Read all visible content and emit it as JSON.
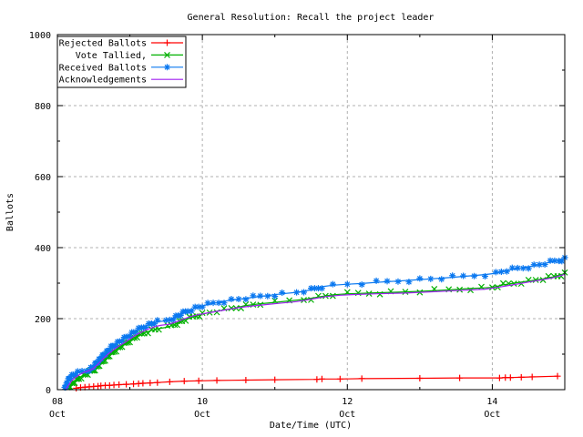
{
  "chart_data": {
    "type": "line",
    "title": "General Resolution: Recall the project leader",
    "xlabel": "Date/Time (UTC)",
    "ylabel": "Ballots",
    "background": "#ffffff",
    "border_color": "#000000",
    "grid_color": "#b0b0b0",
    "grid": "dashed, at major ticks",
    "legend_position": "top-left, boxed",
    "x_axis": {
      "unit": "days since Oct 08 00:00 UTC",
      "range_days": [
        0,
        7
      ],
      "major_ticks": [
        {
          "t": 0,
          "line1": "08",
          "line2": "Oct"
        },
        {
          "t": 2,
          "line1": "10",
          "line2": "Oct"
        },
        {
          "t": 4,
          "line1": "12",
          "line2": "Oct"
        },
        {
          "t": 6,
          "line1": "14",
          "line2": "Oct"
        }
      ],
      "minor_ticks_t": [
        1,
        3,
        5
      ]
    },
    "y_axis": {
      "range": [
        0,
        1000
      ],
      "major_ticks": [
        0,
        200,
        400,
        600,
        800,
        1000
      ],
      "minor_ticks": [
        100,
        300,
        500,
        700,
        900
      ]
    },
    "series": [
      {
        "name": "Rejected Ballots",
        "color": "#ff0000",
        "marker": "plus",
        "densify": false,
        "points": [
          [
            0.26,
            4
          ],
          [
            0.32,
            6
          ],
          [
            0.38,
            7
          ],
          [
            0.44,
            8
          ],
          [
            0.5,
            9
          ],
          [
            0.56,
            10
          ],
          [
            0.6,
            11
          ],
          [
            0.66,
            12
          ],
          [
            0.72,
            12
          ],
          [
            0.78,
            13
          ],
          [
            0.85,
            14
          ],
          [
            0.95,
            15
          ],
          [
            1.05,
            16
          ],
          [
            1.12,
            17
          ],
          [
            1.18,
            18
          ],
          [
            1.28,
            19
          ],
          [
            1.38,
            20
          ],
          [
            1.55,
            22
          ],
          [
            1.75,
            24
          ],
          [
            1.95,
            25
          ],
          [
            2.2,
            26
          ],
          [
            2.6,
            27
          ],
          [
            3.0,
            28
          ],
          [
            3.58,
            29
          ],
          [
            3.65,
            30
          ],
          [
            3.9,
            30
          ],
          [
            4.2,
            31
          ],
          [
            5.0,
            32
          ],
          [
            5.55,
            33
          ],
          [
            6.1,
            33
          ],
          [
            6.18,
            34
          ],
          [
            6.25,
            34
          ],
          [
            6.4,
            35
          ],
          [
            6.55,
            36
          ],
          [
            6.9,
            38
          ]
        ]
      },
      {
        "name": "Vote Tallied,",
        "color": "#00b000",
        "marker": "cross",
        "densify": true,
        "points": [
          [
            0.14,
            2
          ],
          [
            0.18,
            12
          ],
          [
            0.24,
            22
          ],
          [
            0.3,
            32
          ],
          [
            0.36,
            40
          ],
          [
            0.42,
            45
          ],
          [
            0.48,
            52
          ],
          [
            0.54,
            62
          ],
          [
            0.6,
            74
          ],
          [
            0.68,
            90
          ],
          [
            0.76,
            104
          ],
          [
            0.84,
            116
          ],
          [
            0.92,
            127
          ],
          [
            1.0,
            138
          ],
          [
            1.1,
            150
          ],
          [
            1.2,
            160
          ],
          [
            1.3,
            167
          ],
          [
            1.4,
            172
          ],
          [
            1.52,
            176
          ],
          [
            1.62,
            184
          ],
          [
            1.72,
            193
          ],
          [
            1.82,
            201
          ],
          [
            1.92,
            208
          ],
          [
            2.0,
            213
          ],
          [
            2.2,
            221
          ],
          [
            2.4,
            228
          ],
          [
            2.6,
            237
          ],
          [
            2.8,
            242
          ],
          [
            3.0,
            246
          ],
          [
            3.2,
            250
          ],
          [
            3.4,
            254
          ],
          [
            3.6,
            261
          ],
          [
            3.8,
            267
          ],
          [
            4.0,
            270
          ],
          [
            4.3,
            272
          ],
          [
            4.6,
            274
          ],
          [
            5.0,
            277
          ],
          [
            5.4,
            281
          ],
          [
            5.7,
            285
          ],
          [
            6.0,
            288
          ],
          [
            6.15,
            295
          ],
          [
            6.3,
            300
          ],
          [
            6.5,
            306
          ],
          [
            6.7,
            312
          ],
          [
            6.85,
            318
          ],
          [
            7.0,
            327
          ]
        ]
      },
      {
        "name": "Received Ballots",
        "color": "#0a78f0",
        "marker": "asterisk",
        "densify": true,
        "points": [
          [
            0.1,
            2
          ],
          [
            0.12,
            12
          ],
          [
            0.14,
            22
          ],
          [
            0.16,
            30
          ],
          [
            0.18,
            36
          ],
          [
            0.22,
            42
          ],
          [
            0.28,
            47
          ],
          [
            0.34,
            51
          ],
          [
            0.4,
            54
          ],
          [
            0.44,
            57
          ],
          [
            0.48,
            62
          ],
          [
            0.52,
            70
          ],
          [
            0.56,
            80
          ],
          [
            0.62,
            93
          ],
          [
            0.68,
            106
          ],
          [
            0.74,
            118
          ],
          [
            0.8,
            128
          ],
          [
            0.86,
            136
          ],
          [
            0.92,
            143
          ],
          [
            1.0,
            155
          ],
          [
            1.08,
            165
          ],
          [
            1.16,
            173
          ],
          [
            1.22,
            180
          ],
          [
            1.3,
            186
          ],
          [
            1.38,
            191
          ],
          [
            1.5,
            194
          ],
          [
            1.6,
            202
          ],
          [
            1.7,
            212
          ],
          [
            1.8,
            222
          ],
          [
            1.9,
            230
          ],
          [
            2.0,
            236
          ],
          [
            2.15,
            243
          ],
          [
            2.3,
            249
          ],
          [
            2.5,
            255
          ],
          [
            2.7,
            260
          ],
          [
            2.9,
            265
          ],
          [
            3.1,
            270
          ],
          [
            3.3,
            274
          ],
          [
            3.5,
            281
          ],
          [
            3.65,
            290
          ],
          [
            3.8,
            294
          ],
          [
            4.0,
            297
          ],
          [
            4.2,
            299
          ],
          [
            4.4,
            302
          ],
          [
            4.7,
            306
          ],
          [
            5.0,
            310
          ],
          [
            5.3,
            314
          ],
          [
            5.6,
            319
          ],
          [
            5.9,
            324
          ],
          [
            6.05,
            328
          ],
          [
            6.2,
            336
          ],
          [
            6.35,
            341
          ],
          [
            6.5,
            346
          ],
          [
            6.65,
            352
          ],
          [
            6.8,
            359
          ],
          [
            6.92,
            364
          ],
          [
            7.0,
            369
          ]
        ]
      },
      {
        "name": "Acknowledgements",
        "color": "#a020f0",
        "marker": "none",
        "densify": false,
        "points": [
          [
            0.12,
            2
          ],
          [
            0.16,
            14
          ],
          [
            0.2,
            26
          ],
          [
            0.26,
            36
          ],
          [
            0.32,
            44
          ],
          [
            0.38,
            50
          ],
          [
            0.44,
            54
          ],
          [
            0.5,
            60
          ],
          [
            0.56,
            72
          ],
          [
            0.62,
            85
          ],
          [
            0.7,
            100
          ],
          [
            0.78,
            113
          ],
          [
            0.86,
            124
          ],
          [
            0.94,
            134
          ],
          [
            1.02,
            146
          ],
          [
            1.12,
            158
          ],
          [
            1.22,
            168
          ],
          [
            1.32,
            176
          ],
          [
            1.42,
            181
          ],
          [
            1.54,
            184
          ],
          [
            1.64,
            191
          ],
          [
            1.74,
            199
          ],
          [
            1.84,
            206
          ],
          [
            1.94,
            211
          ],
          [
            2.1,
            217
          ],
          [
            2.3,
            224
          ],
          [
            2.5,
            231
          ],
          [
            2.7,
            236
          ],
          [
            2.9,
            240
          ],
          [
            3.1,
            244
          ],
          [
            3.3,
            248
          ],
          [
            3.5,
            255
          ],
          [
            3.7,
            262
          ],
          [
            3.9,
            266
          ],
          [
            4.1,
            268
          ],
          [
            4.4,
            270
          ],
          [
            4.8,
            272
          ],
          [
            5.2,
            276
          ],
          [
            5.6,
            280
          ],
          [
            5.9,
            283
          ],
          [
            6.1,
            289
          ],
          [
            6.3,
            296
          ],
          [
            6.5,
            303
          ],
          [
            6.7,
            310
          ],
          [
            6.85,
            316
          ],
          [
            7.0,
            325
          ]
        ]
      }
    ]
  }
}
